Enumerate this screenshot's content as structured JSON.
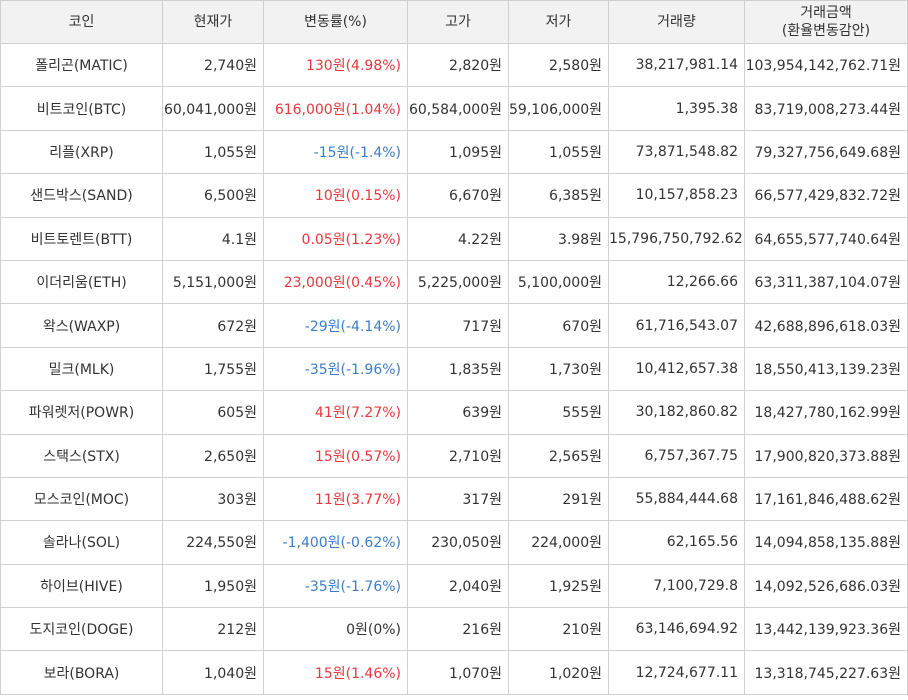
{
  "columns": {
    "coin": "코인",
    "price": "현재가",
    "change": "변동률(%)",
    "high": "고가",
    "low": "저가",
    "volume": "거래량",
    "amount_line1": "거래금액",
    "amount_line2": "(환율변동감안)"
  },
  "colors": {
    "up": "#e8383d",
    "down": "#3b7ec8",
    "flat": "#333333"
  },
  "rows": [
    {
      "coin": "폴리곤(MATIC)",
      "price": "2,740원",
      "change": "130원(4.98%)",
      "dir": "up",
      "high": "2,820원",
      "low": "2,580원",
      "volume": "38,217,981.14",
      "amount": "103,954,142,762.71원"
    },
    {
      "coin": "비트코인(BTC)",
      "price": "60,041,000원",
      "change": "616,000원(1.04%)",
      "dir": "up",
      "high": "60,584,000원",
      "low": "59,106,000원",
      "volume": "1,395.38",
      "amount": "83,719,008,273.44원"
    },
    {
      "coin": "리플(XRP)",
      "price": "1,055원",
      "change": "-15원(-1.4%)",
      "dir": "down",
      "high": "1,095원",
      "low": "1,055원",
      "volume": "73,871,548.82",
      "amount": "79,327,756,649.68원"
    },
    {
      "coin": "샌드박스(SAND)",
      "price": "6,500원",
      "change": "10원(0.15%)",
      "dir": "up",
      "high": "6,670원",
      "low": "6,385원",
      "volume": "10,157,858.23",
      "amount": "66,577,429,832.72원"
    },
    {
      "coin": "비트토렌트(BTT)",
      "price": "4.1원",
      "change": "0.05원(1.23%)",
      "dir": "up",
      "high": "4.22원",
      "low": "3.98원",
      "volume": "15,796,750,792.62",
      "amount": "64,655,577,740.64원"
    },
    {
      "coin": "이더리움(ETH)",
      "price": "5,151,000원",
      "change": "23,000원(0.45%)",
      "dir": "up",
      "high": "5,225,000원",
      "low": "5,100,000원",
      "volume": "12,266.66",
      "amount": "63,311,387,104.07원"
    },
    {
      "coin": "왁스(WAXP)",
      "price": "672원",
      "change": "-29원(-4.14%)",
      "dir": "down",
      "high": "717원",
      "low": "670원",
      "volume": "61,716,543.07",
      "amount": "42,688,896,618.03원"
    },
    {
      "coin": "밀크(MLK)",
      "price": "1,755원",
      "change": "-35원(-1.96%)",
      "dir": "down",
      "high": "1,835원",
      "low": "1,730원",
      "volume": "10,412,657.38",
      "amount": "18,550,413,139.23원"
    },
    {
      "coin": "파워렛저(POWR)",
      "price": "605원",
      "change": "41원(7.27%)",
      "dir": "up",
      "high": "639원",
      "low": "555원",
      "volume": "30,182,860.82",
      "amount": "18,427,780,162.99원"
    },
    {
      "coin": "스택스(STX)",
      "price": "2,650원",
      "change": "15원(0.57%)",
      "dir": "up",
      "high": "2,710원",
      "low": "2,565원",
      "volume": "6,757,367.75",
      "amount": "17,900,820,373.88원"
    },
    {
      "coin": "모스코인(MOC)",
      "price": "303원",
      "change": "11원(3.77%)",
      "dir": "up",
      "high": "317원",
      "low": "291원",
      "volume": "55,884,444.68",
      "amount": "17,161,846,488.62원"
    },
    {
      "coin": "솔라나(SOL)",
      "price": "224,550원",
      "change": "-1,400원(-0.62%)",
      "dir": "down",
      "high": "230,050원",
      "low": "224,000원",
      "volume": "62,165.56",
      "amount": "14,094,858,135.88원"
    },
    {
      "coin": "하이브(HIVE)",
      "price": "1,950원",
      "change": "-35원(-1.76%)",
      "dir": "down",
      "high": "2,040원",
      "low": "1,925원",
      "volume": "7,100,729.8",
      "amount": "14,092,526,686.03원"
    },
    {
      "coin": "도지코인(DOGE)",
      "price": "212원",
      "change": "0원(0%)",
      "dir": "flat",
      "high": "216원",
      "low": "210원",
      "volume": "63,146,694.92",
      "amount": "13,442,139,923.36원"
    },
    {
      "coin": "보라(BORA)",
      "price": "1,040원",
      "change": "15원(1.46%)",
      "dir": "up",
      "high": "1,070원",
      "low": "1,020원",
      "volume": "12,724,677.11",
      "amount": "13,318,745,227.63원"
    }
  ]
}
